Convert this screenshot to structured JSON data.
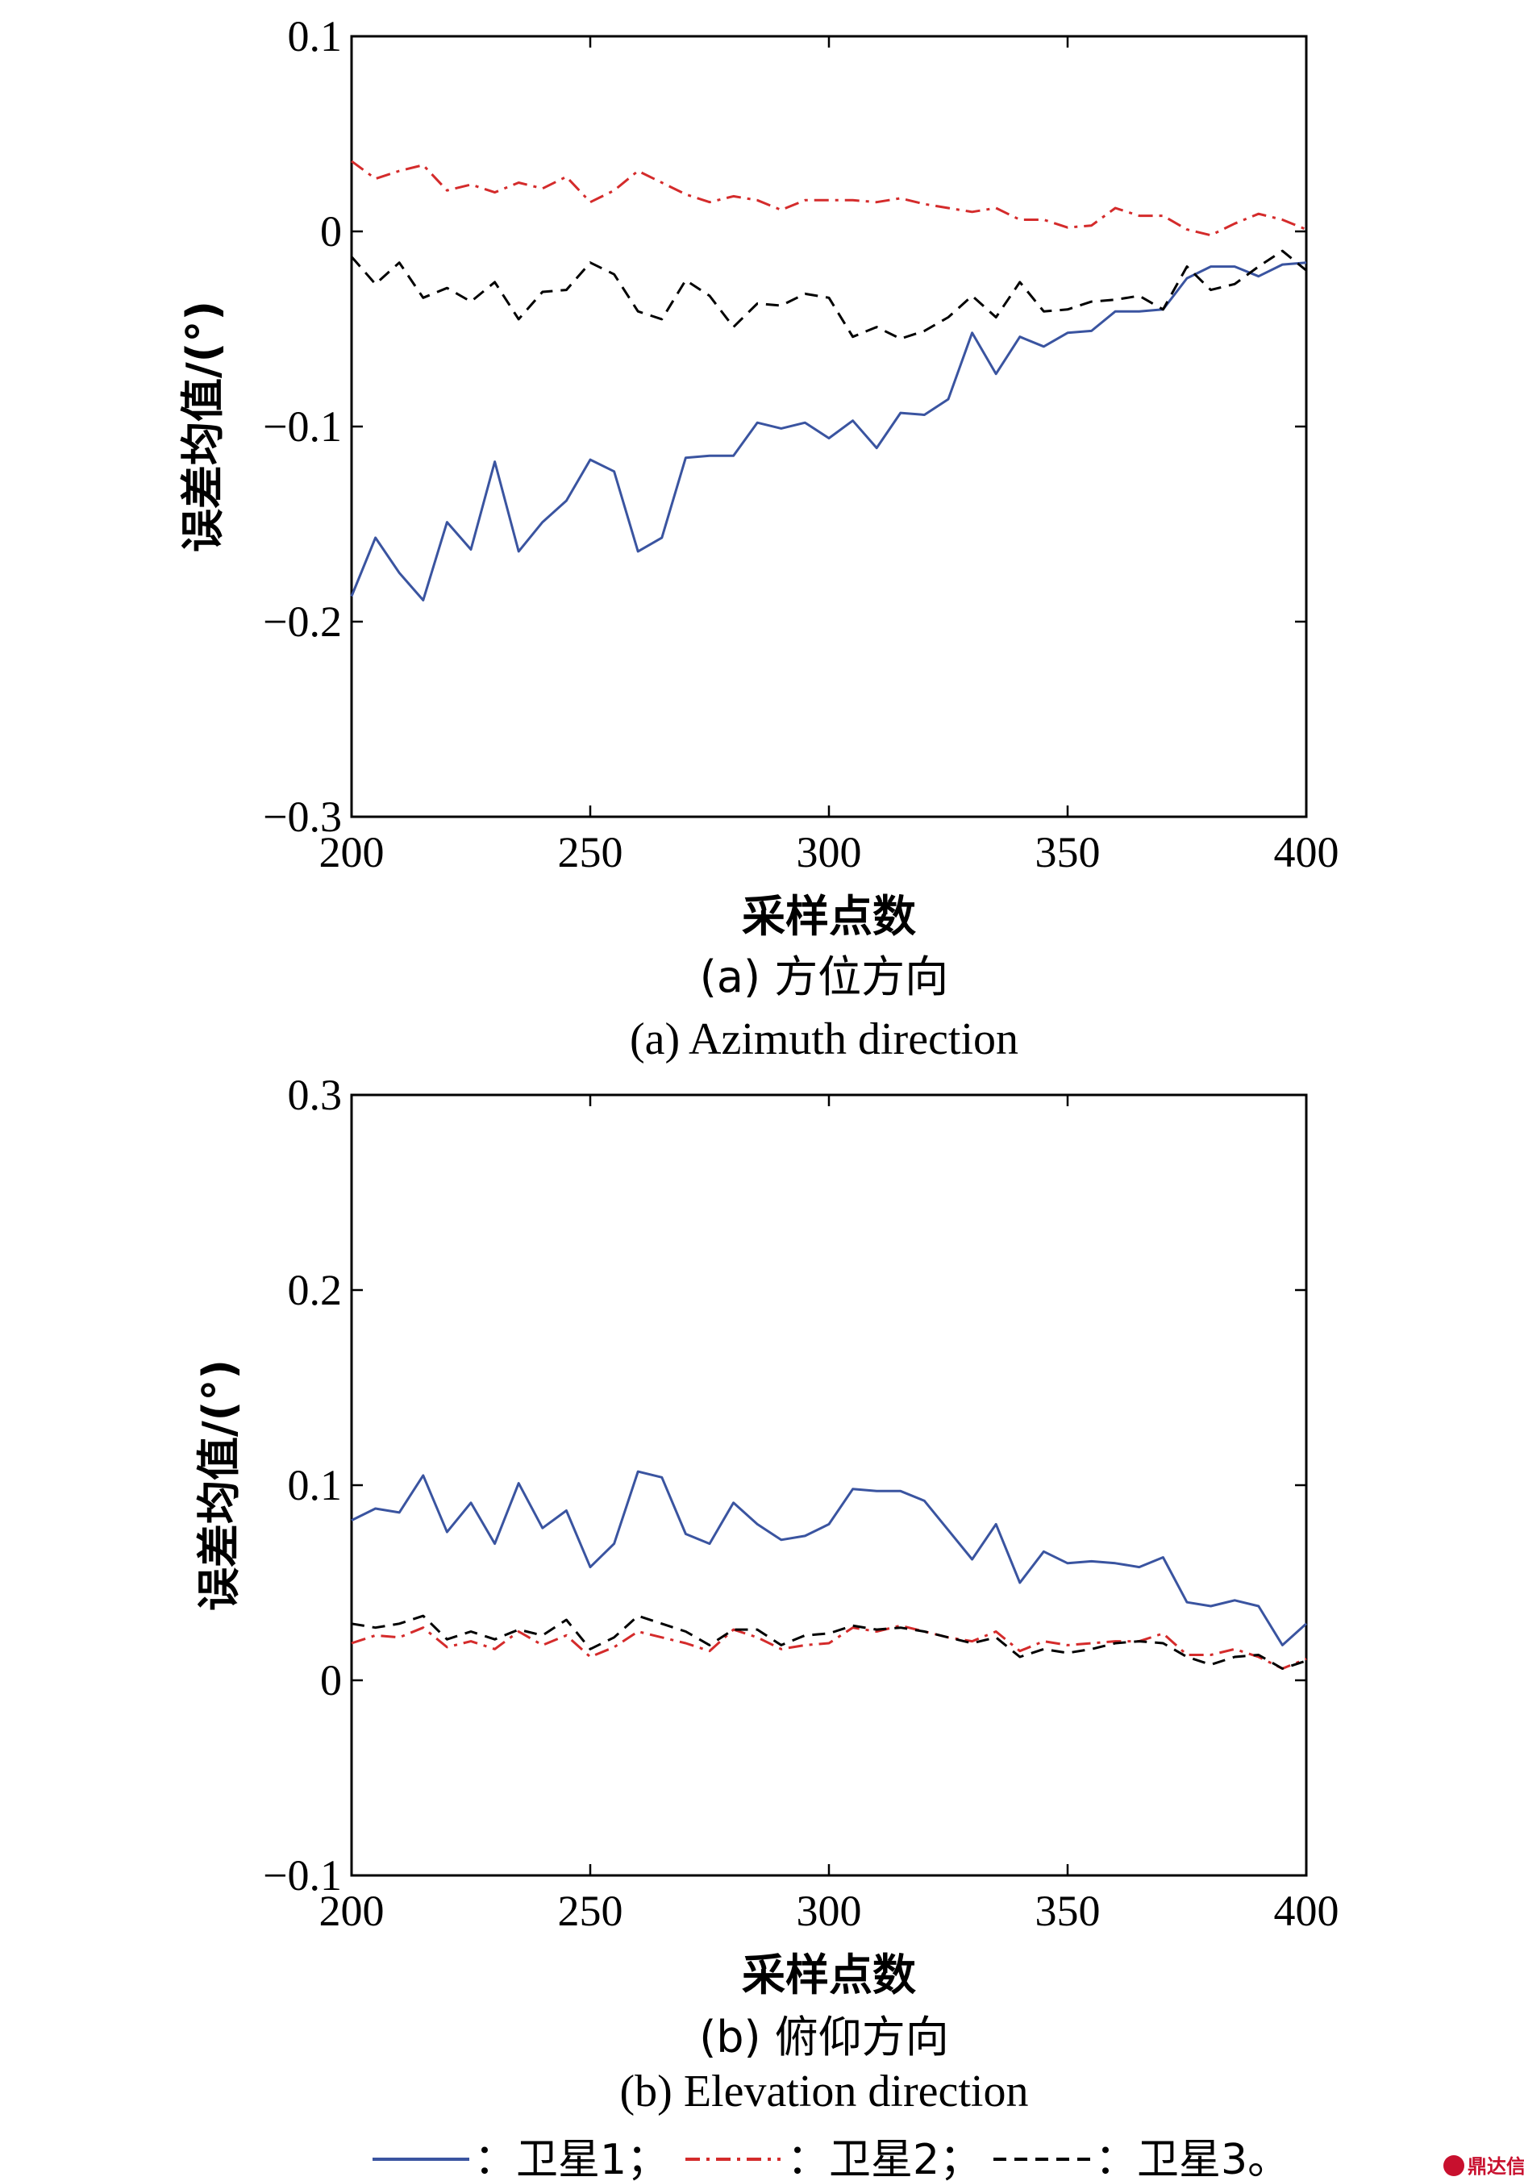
{
  "chart_data": [
    {
      "type": "line",
      "title": "(a) 方位方向",
      "subtitle": "(a) Azimuth direction",
      "xlabel": "采样点数",
      "ylabel": "误差均值/(°)",
      "xlim": [
        200,
        400
      ],
      "ylim": [
        -0.3,
        0.1
      ],
      "xticks": [
        200,
        250,
        300,
        350,
        400
      ],
      "xtick_labels": [
        "200",
        "250",
        "300",
        "350",
        "400"
      ],
      "yticks": [
        0.1,
        0,
        -0.1,
        -0.2,
        -0.3
      ],
      "ytick_labels": [
        "0.1",
        "0",
        "−0.1",
        "−0.2",
        "−0.3"
      ],
      "grid": false,
      "x": [
        200,
        205,
        210,
        215,
        220,
        225,
        230,
        235,
        240,
        245,
        250,
        255,
        260,
        265,
        270,
        275,
        280,
        285,
        290,
        295,
        300,
        305,
        310,
        315,
        320,
        325,
        330,
        335,
        340,
        345,
        350,
        355,
        360,
        365,
        370,
        375,
        380,
        385,
        390,
        395,
        400
      ],
      "series": [
        {
          "name": "卫星1",
          "color": "#3a54a0",
          "style": "solid",
          "values": [
            -0.187,
            -0.157,
            -0.175,
            -0.189,
            -0.149,
            -0.163,
            -0.118,
            -0.164,
            -0.149,
            -0.138,
            -0.117,
            -0.123,
            -0.164,
            -0.157,
            -0.116,
            -0.115,
            -0.115,
            -0.098,
            -0.101,
            -0.098,
            -0.106,
            -0.097,
            -0.111,
            -0.093,
            -0.094,
            -0.086,
            -0.052,
            -0.073,
            -0.054,
            -0.059,
            -0.052,
            -0.051,
            -0.041,
            -0.041,
            -0.04,
            -0.024,
            -0.018,
            -0.018,
            -0.023,
            -0.017,
            -0.016
          ]
        },
        {
          "name": "卫星2",
          "color": "#d42b2b",
          "style": "dashdot",
          "values": [
            0.036,
            0.027,
            0.031,
            0.034,
            0.021,
            0.024,
            0.02,
            0.025,
            0.022,
            0.028,
            0.015,
            0.021,
            0.031,
            0.025,
            0.019,
            0.015,
            0.018,
            0.016,
            0.011,
            0.016,
            0.016,
            0.016,
            0.015,
            0.017,
            0.014,
            0.012,
            0.01,
            0.012,
            0.006,
            0.006,
            0.002,
            0.003,
            0.012,
            0.008,
            0.008,
            0.001,
            -0.002,
            0.004,
            0.009,
            0.006,
            0.001
          ]
        },
        {
          "name": "卫星3",
          "color": "#000000",
          "style": "dashed",
          "values": [
            -0.013,
            -0.027,
            -0.016,
            -0.034,
            -0.029,
            -0.036,
            -0.026,
            -0.045,
            -0.031,
            -0.03,
            -0.016,
            -0.022,
            -0.041,
            -0.045,
            -0.025,
            -0.033,
            -0.049,
            -0.037,
            -0.038,
            -0.032,
            -0.034,
            -0.054,
            -0.049,
            -0.055,
            -0.051,
            -0.044,
            -0.033,
            -0.044,
            -0.026,
            -0.041,
            -0.04,
            -0.036,
            -0.035,
            -0.033,
            -0.04,
            -0.018,
            -0.03,
            -0.027,
            -0.018,
            -0.01,
            -0.02
          ]
        }
      ]
    },
    {
      "type": "line",
      "title": "(b) 俯仰方向",
      "subtitle": "(b) Elevation direction",
      "xlabel": "采样点数",
      "ylabel": "误差均值/(°)",
      "xlim": [
        200,
        400
      ],
      "ylim": [
        -0.1,
        0.3
      ],
      "xticks": [
        200,
        250,
        300,
        350,
        400
      ],
      "xtick_labels": [
        "200",
        "250",
        "300",
        "350",
        "400"
      ],
      "yticks": [
        0.3,
        0.2,
        0.1,
        0,
        -0.1
      ],
      "ytick_labels": [
        "0.3",
        "0.2",
        "0.1",
        "0",
        "−0.1"
      ],
      "grid": false,
      "x": [
        200,
        205,
        210,
        215,
        220,
        225,
        230,
        235,
        240,
        245,
        250,
        255,
        260,
        265,
        270,
        275,
        280,
        285,
        290,
        295,
        300,
        305,
        310,
        315,
        320,
        325,
        330,
        335,
        340,
        345,
        350,
        355,
        360,
        365,
        370,
        375,
        380,
        385,
        390,
        395,
        400
      ],
      "series": [
        {
          "name": "卫星1",
          "color": "#3a54a0",
          "style": "solid",
          "values": [
            0.082,
            0.088,
            0.086,
            0.105,
            0.076,
            0.091,
            0.07,
            0.101,
            0.078,
            0.087,
            0.058,
            0.07,
            0.107,
            0.104,
            0.075,
            0.07,
            0.091,
            0.08,
            0.072,
            0.074,
            0.08,
            0.098,
            0.097,
            0.097,
            0.092,
            0.077,
            0.062,
            0.08,
            0.05,
            0.066,
            0.06,
            0.061,
            0.06,
            0.058,
            0.063,
            0.04,
            0.038,
            0.041,
            0.038,
            0.018,
            0.029
          ]
        },
        {
          "name": "卫星2",
          "color": "#d42b2b",
          "style": "dashdot",
          "values": [
            0.019,
            0.023,
            0.022,
            0.027,
            0.017,
            0.02,
            0.016,
            0.025,
            0.018,
            0.023,
            0.012,
            0.017,
            0.025,
            0.022,
            0.019,
            0.015,
            0.026,
            0.022,
            0.016,
            0.018,
            0.019,
            0.027,
            0.025,
            0.028,
            0.025,
            0.022,
            0.02,
            0.025,
            0.015,
            0.02,
            0.018,
            0.019,
            0.02,
            0.02,
            0.024,
            0.013,
            0.013,
            0.016,
            0.012,
            0.006,
            0.011
          ]
        },
        {
          "name": "卫星3",
          "color": "#000000",
          "style": "dashed",
          "values": [
            0.029,
            0.027,
            0.029,
            0.033,
            0.021,
            0.025,
            0.021,
            0.026,
            0.023,
            0.031,
            0.016,
            0.022,
            0.033,
            0.029,
            0.025,
            0.018,
            0.026,
            0.026,
            0.018,
            0.023,
            0.024,
            0.028,
            0.026,
            0.027,
            0.025,
            0.022,
            0.019,
            0.022,
            0.012,
            0.016,
            0.014,
            0.016,
            0.019,
            0.02,
            0.019,
            0.012,
            0.008,
            0.012,
            0.013,
            0.006,
            0.01
          ]
        }
      ]
    }
  ],
  "legend": {
    "items": [
      {
        "text": "：卫星1；",
        "color": "#3a54a0",
        "style": "solid"
      },
      {
        "text": "：卫星2；",
        "color": "#d42b2b",
        "style": "dashdot"
      },
      {
        "text": "：卫星3。",
        "color": "#000000",
        "style": "dashed"
      }
    ],
    "placement": "bottom"
  },
  "watermark": {
    "text": "鼎达信"
  }
}
